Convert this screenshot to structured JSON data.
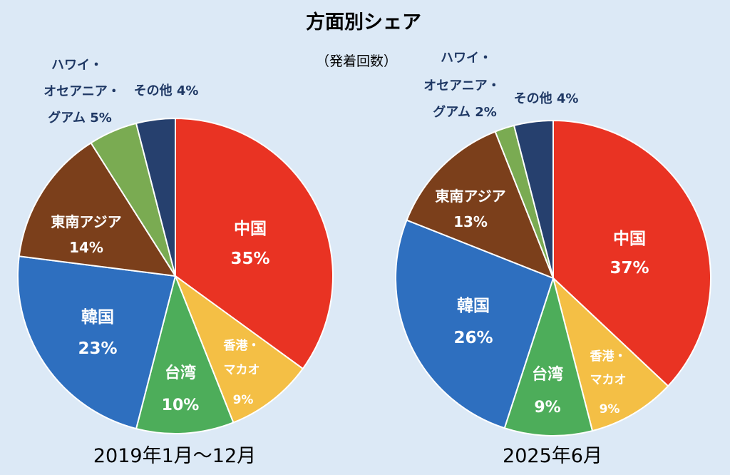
{
  "title": "方面別シェア",
  "subtitle": "（発着回数）",
  "colors": {
    "background": "#dce9f6",
    "china": "#e93323",
    "hongkong_macau": "#f4bf45",
    "taiwan": "#4dad5a",
    "korea": "#2e6fbf",
    "southeast_asia": "#7b3f1b",
    "hawaii_oceania_guam": "#7aab52",
    "other": "#26406e",
    "inside_label": "#ffffff",
    "outside_label": "#1f3864"
  },
  "chart_data": [
    {
      "type": "pie",
      "period": "2019年1月～12月",
      "slices": [
        {
          "name": "中国",
          "value": 35,
          "label": "35%",
          "color": "#e93323"
        },
        {
          "name": "香港・マカオ",
          "value": 9,
          "label": "9%",
          "color": "#f4bf45"
        },
        {
          "name": "台湾",
          "value": 10,
          "label": "10%",
          "color": "#4dad5a"
        },
        {
          "name": "韓国",
          "value": 23,
          "label": "23%",
          "color": "#2e6fbf"
        },
        {
          "name": "東南アジア",
          "value": 14,
          "label": "14%",
          "color": "#7b3f1b"
        },
        {
          "name": "ハワイ・オセアニア・グアム",
          "value": 5,
          "label": "5%",
          "color": "#7aab52"
        },
        {
          "name": "その他",
          "value": 4,
          "label": "4%",
          "color": "#26406e"
        }
      ]
    },
    {
      "type": "pie",
      "period": "2025年6月",
      "slices": [
        {
          "name": "中国",
          "value": 37,
          "label": "37%",
          "color": "#e93323"
        },
        {
          "name": "香港・マカオ",
          "value": 9,
          "label": "9%",
          "color": "#f4bf45"
        },
        {
          "name": "台湾",
          "value": 9,
          "label": "9%",
          "color": "#4dad5a"
        },
        {
          "name": "韓国",
          "value": 26,
          "label": "26%",
          "color": "#2e6fbf"
        },
        {
          "name": "東南アジア",
          "value": 13,
          "label": "13%",
          "color": "#7b3f1b"
        },
        {
          "name": "ハワイ・オセアニア・グアム",
          "value": 2,
          "label": "2%",
          "color": "#7aab52"
        },
        {
          "name": "その他",
          "value": 4,
          "label": "4%",
          "color": "#26406e"
        }
      ]
    }
  ]
}
